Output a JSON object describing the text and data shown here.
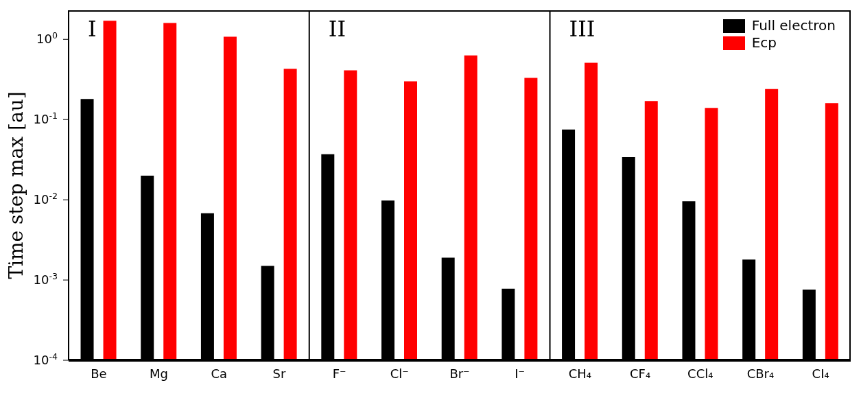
{
  "chart_data": {
    "type": "bar",
    "ylabel": "Time step max [au]",
    "categories": [
      "Be",
      "Mg",
      "Ca",
      "Sr",
      "F⁻",
      "Cl⁻",
      "Br⁻",
      "I⁻",
      "CH₄",
      "CF₄",
      "CCl₄",
      "CBr₄",
      "CI₄"
    ],
    "series": [
      {
        "name": "Full electron",
        "color": "#000000",
        "values": [
          0.18,
          0.02,
          0.0068,
          0.0015,
          0.037,
          0.0098,
          0.0019,
          0.00078,
          0.075,
          0.034,
          0.0096,
          0.0018,
          0.00076
        ]
      },
      {
        "name": "Ecp",
        "color": "#ff0000",
        "values": [
          1.7,
          1.6,
          1.08,
          0.43,
          0.41,
          0.3,
          0.63,
          0.33,
          0.51,
          0.17,
          0.14,
          0.24,
          0.16
        ]
      }
    ],
    "log": "y",
    "ylim": [
      0.0001,
      2.3
    ],
    "yticks": [
      {
        "value": 0.0001,
        "label": "10$^{-4}$"
      },
      {
        "value": 0.001,
        "label": "10$^{-3}$"
      },
      {
        "value": 0.01,
        "label": "10$^{-2}$"
      },
      {
        "value": 0.1,
        "label": "10$^{-1}$"
      },
      {
        "value": 1,
        "label": "10$^{0}$"
      }
    ],
    "annotations": [
      "I",
      "II",
      "III"
    ],
    "legend": "top right"
  }
}
